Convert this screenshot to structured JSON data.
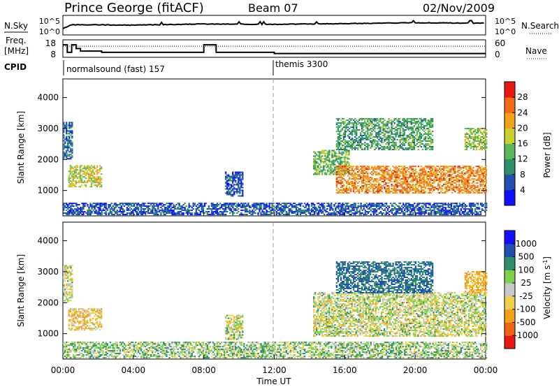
{
  "header": {
    "station": "Prince George (fitACF)",
    "beam": "Beam 07",
    "date": "02/Nov/2009"
  },
  "sky_panel": {
    "left_label": "N.Sky",
    "left_ticks": [
      "10^5",
      "10^0"
    ],
    "right_label": "N.Search",
    "right_ticks": [
      "10^5",
      "10^0"
    ]
  },
  "freq_panel": {
    "left_label_line1": "Freq.",
    "left_label_line2": "[MHz]",
    "left_ticks": [
      "18",
      "8"
    ],
    "right_label": "Nave",
    "right_ticks": [
      "60",
      "0"
    ]
  },
  "cpid_panel": {
    "label": "CPID",
    "modes": [
      {
        "name": "normalsound (fast) 157",
        "start_hour": 0
      },
      {
        "name": "themis 3300",
        "start_hour": 12
      }
    ]
  },
  "colors": {
    "power_scale": [
      "#1010ff",
      "#1f4fb0",
      "#2d8f6a",
      "#59b85a",
      "#c8cf2e",
      "#f5a01a",
      "#f56a14",
      "#e81a10"
    ],
    "velocity_scale": [
      "#e81a10",
      "#f06414",
      "#f5a01a",
      "#f0d24a",
      "#c8c8c8",
      "#7dd24a",
      "#2d8f6a",
      "#1f4fb0",
      "#1010ff"
    ]
  },
  "chart_data": [
    {
      "type": "heatmap",
      "title": "",
      "xlabel": "",
      "ylabel": "Slant Range [km]",
      "xlim": [
        0,
        24
      ],
      "ylim": [
        180,
        4600
      ],
      "yticks": [
        1000,
        2000,
        3000,
        4000
      ],
      "colorbar": {
        "label": "Power [dB]",
        "ticks": [
          4,
          8,
          12,
          16,
          20,
          24,
          28
        ],
        "range": [
          0,
          32
        ]
      },
      "regions": [
        {
          "x": [
            0.0,
            0.5
          ],
          "y": [
            2000,
            3200
          ],
          "value": 8
        },
        {
          "x": [
            0.3,
            2.2
          ],
          "y": [
            1100,
            1800
          ],
          "value": 18
        },
        {
          "x": [
            9.2,
            10.2
          ],
          "y": [
            800,
            1600
          ],
          "value": 6
        },
        {
          "x": [
            14.2,
            16.2
          ],
          "y": [
            1500,
            2300
          ],
          "value": 14
        },
        {
          "x": [
            15.5,
            24.0
          ],
          "y": [
            900,
            1800
          ],
          "value": 24
        },
        {
          "x": [
            15.5,
            21.0
          ],
          "y": [
            2300,
            3300
          ],
          "value": 12
        },
        {
          "x": [
            22.8,
            24.0
          ],
          "y": [
            2300,
            3000
          ],
          "value": 16
        },
        {
          "x": [
            0.0,
            24.0
          ],
          "y": [
            200,
            600
          ],
          "value": 6
        }
      ]
    },
    {
      "type": "heatmap",
      "title": "",
      "xlabel": "Time UT",
      "ylabel": "Slant Range [km]",
      "xlim": [
        0,
        24
      ],
      "ylim": [
        180,
        4600
      ],
      "xticks": [
        "00:00",
        "04:00",
        "08:00",
        "12:00",
        "16:00",
        "20:00",
        "00:00"
      ],
      "yticks": [
        1000,
        2000,
        3000,
        4000
      ],
      "colorbar": {
        "label": "Velocity [m s^-1]",
        "ticks": [
          1000,
          500,
          100,
          25,
          -25,
          -100,
          -500,
          -1000
        ]
      },
      "regions": [
        {
          "x": [
            0.0,
            0.5
          ],
          "y": [
            2000,
            3200
          ],
          "value": 0
        },
        {
          "x": [
            0.3,
            2.2
          ],
          "y": [
            1100,
            1800
          ],
          "value": -80
        },
        {
          "x": [
            9.2,
            10.2
          ],
          "y": [
            800,
            1600
          ],
          "value": 0
        },
        {
          "x": [
            14.2,
            24.0
          ],
          "y": [
            900,
            2300
          ],
          "value": 0
        },
        {
          "x": [
            15.5,
            21.0
          ],
          "y": [
            2300,
            3300
          ],
          "value": 300
        },
        {
          "x": [
            22.8,
            24.0
          ],
          "y": [
            2300,
            3000
          ],
          "value": -150
        },
        {
          "x": [
            0.0,
            24.0
          ],
          "y": [
            200,
            700
          ],
          "value": 50
        }
      ]
    },
    {
      "type": "line",
      "title": "",
      "series": [
        {
          "x": [
            0,
            0.5,
            4,
            8,
            12,
            16,
            20,
            24
          ],
          "values": [
            1.6,
            2.6,
            2.5,
            2.8,
            2.7,
            2.9,
            3.1,
            3.0
          ]
        }
      ]
    },
    {
      "type": "line",
      "title": "",
      "series": [
        {
          "x": [
            0,
            0.25,
            0.5,
            0.75,
            1.0,
            2.2,
            7.5,
            8.0,
            8.7,
            11.9,
            12.0,
            24.0
          ],
          "values": [
            16,
            10,
            16,
            13,
            11,
            10,
            10,
            16,
            10,
            10,
            9,
            9
          ]
        },
        {
          "x": [
            0,
            24
          ],
          "values": [
            38,
            38
          ]
        }
      ]
    }
  ]
}
